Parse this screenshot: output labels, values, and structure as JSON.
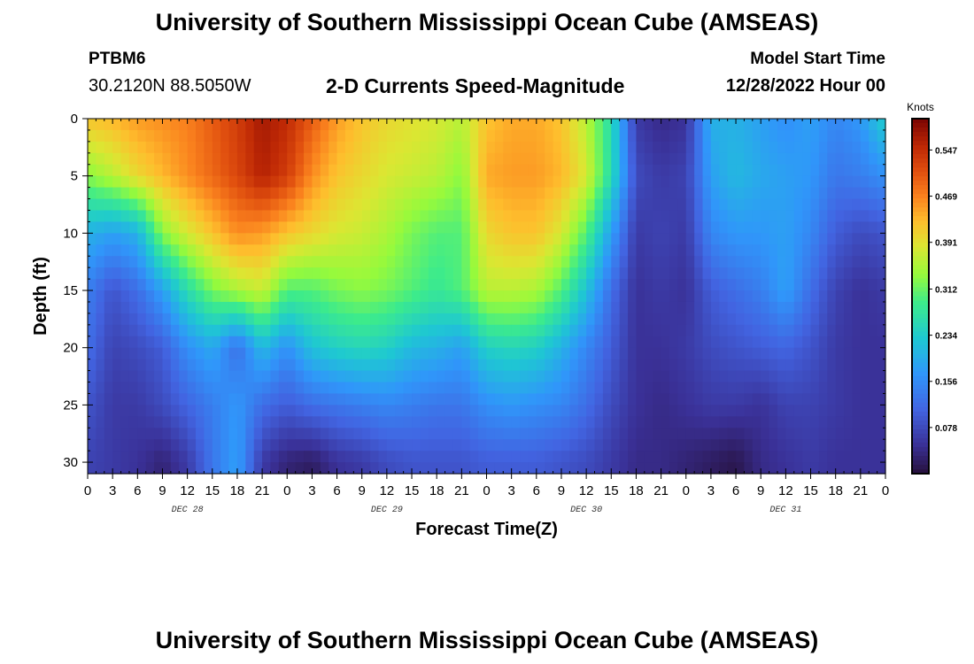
{
  "header": {
    "title": "University of Southern Mississippi Ocean Cube (AMSEAS)",
    "station": "PTBM6",
    "coords": "30.2120N  88.5050W",
    "subtitle": "2-D Currents Speed-Magnitude",
    "model_start_label": "Model Start Time",
    "model_start_value": "12/28/2022 Hour 00"
  },
  "footer": {
    "title": "University of Southern Mississippi Ocean Cube (AMSEAS)"
  },
  "chart_data": {
    "type": "heatmap",
    "xlabel": "Forecast Time(Z)",
    "ylabel": "Depth (ft)",
    "x_range": [
      0,
      96
    ],
    "y_range": [
      0,
      31
    ],
    "x_ticks": [
      {
        "h": 0,
        "label": "0"
      },
      {
        "h": 3,
        "label": "3"
      },
      {
        "h": 6,
        "label": "6"
      },
      {
        "h": 9,
        "label": "9"
      },
      {
        "h": 12,
        "label": "12"
      },
      {
        "h": 15,
        "label": "15"
      },
      {
        "h": 18,
        "label": "18"
      },
      {
        "h": 21,
        "label": "21"
      },
      {
        "h": 24,
        "label": "0"
      },
      {
        "h": 27,
        "label": "3"
      },
      {
        "h": 30,
        "label": "6"
      },
      {
        "h": 33,
        "label": "9"
      },
      {
        "h": 36,
        "label": "12"
      },
      {
        "h": 39,
        "label": "15"
      },
      {
        "h": 42,
        "label": "18"
      },
      {
        "h": 45,
        "label": "21"
      },
      {
        "h": 48,
        "label": "0"
      },
      {
        "h": 51,
        "label": "3"
      },
      {
        "h": 54,
        "label": "6"
      },
      {
        "h": 57,
        "label": "9"
      },
      {
        "h": 60,
        "label": "12"
      },
      {
        "h": 63,
        "label": "15"
      },
      {
        "h": 66,
        "label": "18"
      },
      {
        "h": 69,
        "label": "21"
      },
      {
        "h": 72,
        "label": "0"
      },
      {
        "h": 75,
        "label": "3"
      },
      {
        "h": 78,
        "label": "6"
      },
      {
        "h": 81,
        "label": "9"
      },
      {
        "h": 84,
        "label": "12"
      },
      {
        "h": 87,
        "label": "15"
      },
      {
        "h": 90,
        "label": "18"
      },
      {
        "h": 93,
        "label": "21"
      },
      {
        "h": 96,
        "label": "0"
      }
    ],
    "date_labels": [
      {
        "h": 12,
        "label": "DEC 28"
      },
      {
        "h": 36,
        "label": "DEC 29"
      },
      {
        "h": 60,
        "label": "DEC 30"
      },
      {
        "h": 84,
        "label": "DEC 31"
      }
    ],
    "y_ticks": [
      0,
      5,
      10,
      15,
      20,
      25,
      30
    ],
    "colorbar": {
      "unit": "Knots",
      "min": 0.0,
      "max": 0.6,
      "ticks": [
        0.078,
        0.156,
        0.234,
        0.312,
        0.391,
        0.469,
        0.547
      ],
      "tick_labels": [
        "0.078",
        "0.156",
        "0.234",
        "0.312",
        "0.391",
        "0.469",
        "0.547"
      ]
    },
    "speed_grid": {
      "hours": [
        0,
        3,
        6,
        9,
        12,
        15,
        18,
        21,
        24,
        27,
        30,
        33,
        36,
        39,
        42,
        45,
        48,
        51,
        54,
        57,
        60,
        63,
        66,
        69,
        72,
        75,
        78,
        81,
        84,
        87,
        90,
        93,
        96
      ],
      "depths": [
        0,
        5,
        10,
        15,
        20,
        25,
        30
      ],
      "values": [
        [
          0.42,
          0.43,
          0.45,
          0.46,
          0.47,
          0.5,
          0.53,
          0.57,
          0.55,
          0.5,
          0.45,
          0.42,
          0.4,
          0.39,
          0.38,
          0.36,
          0.42,
          0.44,
          0.44,
          0.42,
          0.36,
          0.26,
          0.06,
          0.04,
          0.05,
          0.2,
          0.2,
          0.18,
          0.16,
          0.18,
          0.15,
          0.17,
          0.24
        ],
        [
          0.33,
          0.36,
          0.4,
          0.43,
          0.46,
          0.49,
          0.52,
          0.56,
          0.53,
          0.46,
          0.42,
          0.4,
          0.38,
          0.37,
          0.36,
          0.33,
          0.44,
          0.45,
          0.45,
          0.43,
          0.38,
          0.26,
          0.08,
          0.06,
          0.07,
          0.18,
          0.21,
          0.19,
          0.18,
          0.17,
          0.13,
          0.14,
          0.16
        ],
        [
          0.2,
          0.18,
          0.2,
          0.33,
          0.38,
          0.42,
          0.46,
          0.45,
          0.42,
          0.4,
          0.38,
          0.37,
          0.35,
          0.32,
          0.3,
          0.3,
          0.4,
          0.42,
          0.42,
          0.38,
          0.3,
          0.18,
          0.06,
          0.07,
          0.06,
          0.15,
          0.17,
          0.17,
          0.18,
          0.15,
          0.1,
          0.08,
          0.09
        ],
        [
          0.14,
          0.09,
          0.12,
          0.18,
          0.26,
          0.32,
          0.35,
          0.37,
          0.3,
          0.3,
          0.32,
          0.33,
          0.32,
          0.3,
          0.28,
          0.3,
          0.36,
          0.36,
          0.35,
          0.3,
          0.22,
          0.12,
          0.05,
          0.06,
          0.05,
          0.1,
          0.12,
          0.14,
          0.18,
          0.12,
          0.07,
          0.05,
          0.06
        ],
        [
          0.12,
          0.07,
          0.08,
          0.1,
          0.16,
          0.19,
          0.12,
          0.21,
          0.16,
          0.22,
          0.24,
          0.25,
          0.24,
          0.21,
          0.2,
          0.18,
          0.24,
          0.25,
          0.24,
          0.2,
          0.15,
          0.1,
          0.05,
          0.05,
          0.06,
          0.08,
          0.09,
          0.1,
          0.11,
          0.09,
          0.06,
          0.05,
          0.05
        ],
        [
          0.09,
          0.06,
          0.06,
          0.08,
          0.11,
          0.14,
          0.17,
          0.12,
          0.1,
          0.12,
          0.13,
          0.14,
          0.15,
          0.14,
          0.13,
          0.13,
          0.16,
          0.17,
          0.16,
          0.15,
          0.12,
          0.08,
          0.05,
          0.04,
          0.05,
          0.06,
          0.06,
          0.05,
          0.07,
          0.07,
          0.06,
          0.05,
          0.05
        ],
        [
          0.07,
          0.06,
          0.05,
          0.03,
          0.06,
          0.13,
          0.18,
          0.06,
          0.03,
          0.02,
          0.05,
          0.06,
          0.08,
          0.09,
          0.09,
          0.09,
          0.1,
          0.1,
          0.1,
          0.09,
          0.08,
          0.06,
          0.04,
          0.04,
          0.03,
          0.02,
          0.01,
          0.04,
          0.05,
          0.06,
          0.05,
          0.05,
          0.05
        ]
      ]
    }
  }
}
